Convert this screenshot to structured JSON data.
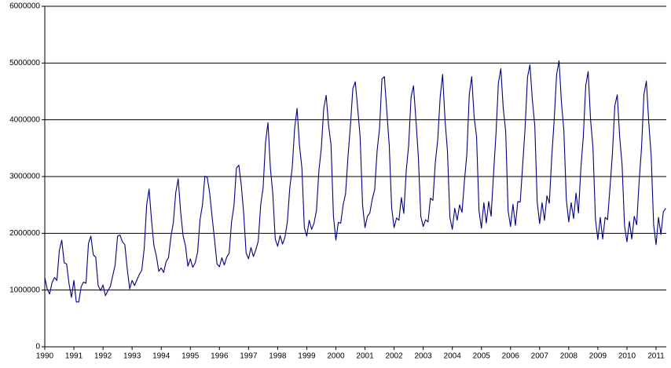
{
  "chart_data": {
    "type": "line",
    "color": "#000080",
    "grid": true,
    "ylim": [
      0,
      6000000
    ],
    "yticks": [
      0,
      1000000,
      2000000,
      3000000,
      4000000,
      5000000,
      6000000
    ],
    "categories": [
      "1990",
      null,
      null,
      null,
      null,
      null,
      null,
      null,
      null,
      null,
      null,
      null,
      "1991",
      null,
      null,
      null,
      null,
      null,
      null,
      null,
      null,
      null,
      null,
      null,
      "1992",
      null,
      null,
      null,
      null,
      null,
      null,
      null,
      null,
      null,
      null,
      null,
      "1993",
      null,
      null,
      null,
      null,
      null,
      null,
      null,
      null,
      null,
      null,
      null,
      "1994",
      null,
      null,
      null,
      null,
      null,
      null,
      null,
      null,
      null,
      null,
      null,
      "1995",
      null,
      null,
      null,
      null,
      null,
      null,
      null,
      null,
      null,
      null,
      null,
      "1996",
      null,
      null,
      null,
      null,
      null,
      null,
      null,
      null,
      null,
      null,
      null,
      "1997",
      null,
      null,
      null,
      null,
      null,
      null,
      null,
      null,
      null,
      null,
      null,
      "1998",
      null,
      null,
      null,
      null,
      null,
      null,
      null,
      null,
      null,
      null,
      null,
      "1999",
      null,
      null,
      null,
      null,
      null,
      null,
      null,
      null,
      null,
      null,
      null,
      "2000",
      null,
      null,
      null,
      null,
      null,
      null,
      null,
      null,
      null,
      null,
      null,
      "2001",
      null,
      null,
      null,
      null,
      null,
      null,
      null,
      null,
      null,
      null,
      null,
      "2002",
      null,
      null,
      null,
      null,
      null,
      null,
      null,
      null,
      null,
      null,
      null,
      "2003",
      null,
      null,
      null,
      null,
      null,
      null,
      null,
      null,
      null,
      null,
      null,
      "2004",
      null,
      null,
      null,
      null,
      null,
      null,
      null,
      null,
      null,
      null,
      null,
      "2005",
      null,
      null,
      null,
      null,
      null,
      null,
      null,
      null,
      null,
      null,
      null,
      "2006",
      null,
      null,
      null,
      null,
      null,
      null,
      null,
      null,
      null,
      null,
      null,
      "2007",
      null,
      null,
      null,
      null,
      null,
      null,
      null,
      null,
      null,
      null,
      null,
      "2008",
      null,
      null,
      null,
      null,
      null,
      null,
      null,
      null,
      null,
      null,
      null,
      "2009",
      null,
      null,
      null,
      null,
      null,
      null,
      null,
      null,
      null,
      null,
      null,
      "2010",
      null,
      null,
      null,
      null,
      null,
      null,
      null,
      null,
      null,
      null,
      null,
      "2011",
      null,
      null,
      null,
      null
    ],
    "values": [
      1220000,
      1020000,
      930000,
      1130000,
      1220000,
      1170000,
      1700000,
      1880000,
      1480000,
      1460000,
      1110000,
      870000,
      1170000,
      790000,
      790000,
      1060000,
      1140000,
      1120000,
      1820000,
      1950000,
      1620000,
      1580000,
      1080000,
      990000,
      1090000,
      900000,
      990000,
      1060000,
      1250000,
      1440000,
      1950000,
      1970000,
      1850000,
      1800000,
      1370000,
      1020000,
      1170000,
      1080000,
      1180000,
      1280000,
      1350000,
      1740000,
      2500000,
      2780000,
      2230000,
      1780000,
      1600000,
      1330000,
      1390000,
      1310000,
      1500000,
      1570000,
      1940000,
      2190000,
      2720000,
      2960000,
      2380000,
      1960000,
      1780000,
      1420000,
      1550000,
      1400000,
      1480000,
      1670000,
      2240000,
      2500000,
      3010000,
      2980000,
      2700000,
      2280000,
      1880000,
      1460000,
      1410000,
      1570000,
      1440000,
      1580000,
      1650000,
      2200000,
      2490000,
      3150000,
      3200000,
      2850000,
      2350000,
      1650000,
      1550000,
      1750000,
      1590000,
      1710000,
      1860000,
      2500000,
      2800000,
      3600000,
      3950000,
      3150000,
      2700000,
      1900000,
      1770000,
      1960000,
      1810000,
      1930000,
      2200000,
      2800000,
      3150000,
      3850000,
      4200000,
      3550000,
      3150000,
      2100000,
      1950000,
      2230000,
      2070000,
      2180000,
      2400000,
      3100000,
      3500000,
      4200000,
      4430000,
      3900000,
      3560000,
      2300000,
      1880000,
      2190000,
      2180000,
      2500000,
      2700000,
      3350000,
      3900000,
      4550000,
      4670000,
      4200000,
      3700000,
      2500000,
      2100000,
      2300000,
      2360000,
      2600000,
      2770000,
      3450000,
      3850000,
      4720000,
      4760000,
      4150000,
      3550000,
      2450000,
      2100000,
      2270000,
      2230000,
      2630000,
      2350000,
      3100000,
      3550000,
      4400000,
      4600000,
      4000000,
      3350000,
      2300000,
      2120000,
      2240000,
      2200000,
      2620000,
      2580000,
      3250000,
      3650000,
      4400000,
      4800000,
      4000000,
      3450000,
      2280000,
      2070000,
      2440000,
      2230000,
      2500000,
      2370000,
      2920000,
      3400000,
      4450000,
      4760000,
      4050000,
      3700000,
      2400000,
      2090000,
      2540000,
      2180000,
      2560000,
      2300000,
      3050000,
      3750000,
      4650000,
      4900000,
      4200000,
      3800000,
      2400000,
      2120000,
      2510000,
      2140000,
      2560000,
      2550000,
      3200000,
      3850000,
      4750000,
      4970000,
      4350000,
      3900000,
      2550000,
      2170000,
      2540000,
      2230000,
      2660000,
      2530000,
      3350000,
      4000000,
      4800000,
      5040000,
      4300000,
      3800000,
      2600000,
      2200000,
      2540000,
      2260000,
      2710000,
      2360000,
      3150000,
      3700000,
      4600000,
      4850000,
      4000000,
      3500000,
      2250000,
      1890000,
      2280000,
      1900000,
      2280000,
      2240000,
      2800000,
      3400000,
      4250000,
      4440000,
      3700000,
      3200000,
      2130000,
      1850000,
      2210000,
      1900000,
      2300000,
      2150000,
      2900000,
      3500000,
      4450000,
      4680000,
      3950000,
      3350000,
      2150000,
      1800000,
      2280000,
      1980000,
      2380000,
      2440000
    ]
  }
}
